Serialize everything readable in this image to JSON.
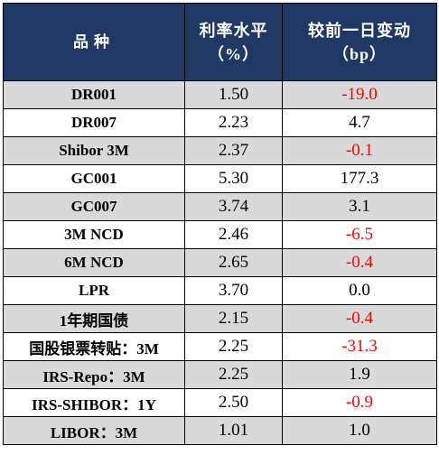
{
  "table": {
    "headers": {
      "col1": "品种",
      "col2_line1": "利率水平",
      "col2_line2": "（%）",
      "col3_line1": "较前一日变动",
      "col3_line2": "（bp）"
    },
    "rows": [
      {
        "name": "DR001",
        "rate": "1.50",
        "change": "-19.0",
        "shaded": true,
        "negative": true
      },
      {
        "name": "DR007",
        "rate": "2.23",
        "change": "4.7",
        "shaded": false,
        "negative": false
      },
      {
        "name": "Shibor 3M",
        "rate": "2.37",
        "change": "-0.1",
        "shaded": true,
        "negative": true
      },
      {
        "name": "GC001",
        "rate": "5.30",
        "change": "177.3",
        "shaded": false,
        "negative": false
      },
      {
        "name": "GC007",
        "rate": "3.74",
        "change": "3.1",
        "shaded": true,
        "negative": false
      },
      {
        "name": "3M NCD",
        "rate": "2.46",
        "change": "-6.5",
        "shaded": false,
        "negative": true
      },
      {
        "name": "6M NCD",
        "rate": "2.65",
        "change": "-0.4",
        "shaded": true,
        "negative": true
      },
      {
        "name": "LPR",
        "rate": "3.70",
        "change": "0.0",
        "shaded": false,
        "negative": false
      },
      {
        "name": "1年期国债",
        "rate": "2.15",
        "change": "-0.4",
        "shaded": true,
        "negative": true
      },
      {
        "name": "国股银票转贴：3M",
        "rate": "2.25",
        "change": "-31.3",
        "shaded": false,
        "negative": true
      },
      {
        "name": "IRS-Repo：3M",
        "rate": "2.25",
        "change": "1.9",
        "shaded": true,
        "negative": false
      },
      {
        "name": "IRS-SHIBOR：1Y",
        "rate": "2.50",
        "change": "-0.9",
        "shaded": false,
        "negative": true
      },
      {
        "name": "LIBOR：3M",
        "rate": "1.01",
        "change": "1.0",
        "shaded": true,
        "negative": false
      }
    ],
    "colors": {
      "header_bg": "#1f3864",
      "header_text": "#ffffff",
      "shade_bg": "#d9d9d9",
      "negative_text": "#ff0000",
      "border": "#000000"
    }
  }
}
